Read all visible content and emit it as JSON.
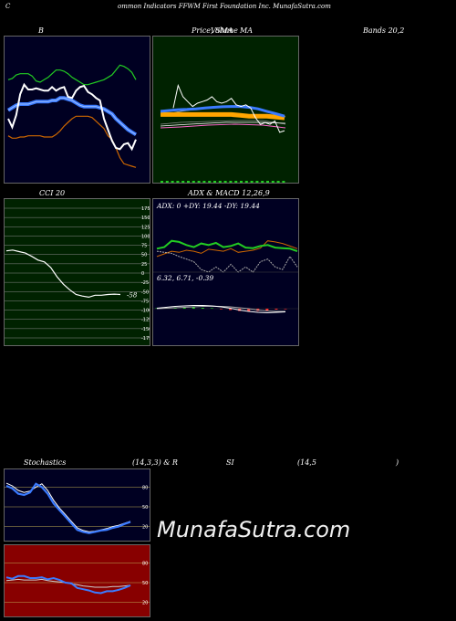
{
  "header": {
    "c": "C",
    "title": "ommon Indicators FFWM First Foundation Inc. MunafaSutra.com"
  },
  "labels": {
    "b": "B",
    "price_sma": "Price,  SMA",
    "volume": "Volume",
    "ma": "MA",
    "bands": "Bands 20,2",
    "cci": "CCI 20",
    "adx_macd": "ADX  & MACD 12,26,9",
    "stochastics": "Stochastics",
    "stoch_params": "(14,3,3) & R",
    "si": "SI",
    "rsi_params": "(14,5",
    "close_paren": ")"
  },
  "watermark": "MunafaSutra.com",
  "colors": {
    "panel_dark": "#000022",
    "panel_green": "#002200",
    "panel_red": "#880000",
    "blue": "#3b7bff",
    "white": "#ffffff",
    "green": "#22cc22",
    "orange": "#cc6600"
  },
  "chart_data": [
    {
      "id": "bollinger",
      "type": "line",
      "title": "Bands 20,2",
      "series": [
        {
          "role": "upper",
          "color": "#22cc22",
          "values": [
            62,
            63,
            66,
            67,
            67,
            67,
            65,
            61,
            60,
            62,
            64,
            67,
            70,
            70,
            69,
            67,
            64,
            62,
            60,
            58,
            58,
            59,
            60,
            61,
            62,
            64,
            66,
            70,
            74,
            73,
            71,
            68,
            62
          ]
        },
        {
          "role": "middle",
          "color": "#3b7bff",
          "values": [
            37,
            39,
            41,
            42,
            42,
            42,
            43,
            44,
            44,
            44,
            44,
            45,
            45,
            47,
            47,
            46,
            45,
            43,
            41,
            40,
            40,
            40,
            40,
            39,
            38,
            36,
            34,
            30,
            27,
            24,
            21,
            19,
            17
          ]
        },
        {
          "role": "lower",
          "color": "#cc6600",
          "values": [
            16,
            14,
            14,
            15,
            15,
            16,
            16,
            16,
            16,
            15,
            15,
            15,
            17,
            20,
            24,
            27,
            30,
            32,
            32,
            32,
            32,
            31,
            28,
            25,
            22,
            16,
            13,
            6,
            -2,
            -7,
            -8,
            -9,
            -10
          ]
        },
        {
          "role": "price",
          "color": "#ffffff",
          "values": [
            30,
            23,
            33,
            50,
            58,
            54,
            54,
            55,
            54,
            53,
            53,
            56,
            53,
            55,
            56,
            48,
            47,
            53,
            56,
            57,
            52,
            50,
            47,
            45,
            30,
            21,
            12,
            6,
            5,
            9,
            10,
            5,
            13
          ]
        }
      ]
    },
    {
      "id": "price_sma",
      "type": "line",
      "title": "Price,  SMA",
      "series": [
        {
          "role": "price",
          "color": "#ffffff",
          "values": [
            18.2,
            19.6,
            18.9,
            18.6,
            18.3,
            18.5,
            18.6,
            18.7,
            18.9,
            18.6,
            18.5,
            18.6,
            18.8,
            18.4,
            18.3,
            18.4,
            18.2,
            17.6,
            17.2,
            17.3,
            17.2,
            17.4,
            16.7,
            16.8
          ]
        },
        {
          "role": "sma-short",
          "color": "#3b7bff",
          "values": [
            18.0,
            18.05,
            18.1,
            18.12,
            18.15,
            18.2,
            18.25,
            18.28,
            18.3,
            18.3,
            18.25,
            18.15,
            18.0,
            17.85,
            17.7
          ]
        },
        {
          "role": "sma-long",
          "color": "#ffa500",
          "values": [
            17.8,
            17.8,
            17.8,
            17.8,
            17.8,
            17.8,
            17.8,
            17.8,
            17.8,
            17.75,
            17.7,
            17.7,
            17.7,
            17.65,
            17.6
          ]
        }
      ]
    },
    {
      "id": "cci",
      "type": "line",
      "title": "CCI 20",
      "ylim": [
        -175,
        175
      ],
      "ticks": [
        175,
        150,
        125,
        100,
        75,
        50,
        25,
        0,
        -25,
        -50,
        -75,
        -100,
        -125,
        -150,
        -175
      ],
      "last_label": "-58",
      "values": [
        60,
        62,
        58,
        54,
        45,
        35,
        30,
        15,
        -10,
        -30,
        -45,
        -58,
        -62,
        -65,
        -60,
        -60,
        -58,
        -57,
        -58
      ]
    },
    {
      "id": "adx",
      "type": "line",
      "title": "ADX: 0  +DY: 19.44  -DY: 19.44",
      "series": [
        {
          "name": "+DY",
          "color": "#22cc22",
          "values": [
            45,
            48,
            60,
            58,
            52,
            48,
            55,
            52,
            56,
            48,
            50,
            55,
            47,
            46,
            50,
            52,
            47,
            46,
            45,
            40
          ]
        },
        {
          "name": "-DY",
          "color": "#cc6600",
          "values": [
            30,
            35,
            40,
            38,
            42,
            40,
            36,
            44,
            42,
            40,
            45,
            38,
            40,
            42,
            46,
            60,
            58,
            55,
            50,
            45
          ]
        },
        {
          "name": "ADX",
          "color": "#aaaaaa",
          "values": [
            40,
            38,
            36,
            30,
            25,
            20,
            5,
            0,
            10,
            0,
            15,
            0,
            10,
            0,
            20,
            25,
            10,
            5,
            30,
            10
          ]
        }
      ]
    },
    {
      "id": "macd",
      "type": "line",
      "title": "6.32,  6.71,  -0.39",
      "series": [
        {
          "name": "macd",
          "color": "#ffffff",
          "values": [
            0.1,
            0.3,
            0.5,
            0.6,
            0.7,
            0.7,
            0.6,
            0.4,
            0.1,
            -0.3,
            -0.6,
            -0.8,
            -0.9,
            -0.8,
            -0.7
          ]
        },
        {
          "name": "signal",
          "color": "#aaaaaa",
          "values": [
            0.0,
            0.1,
            0.2,
            0.3,
            0.4,
            0.5,
            0.55,
            0.5,
            0.4,
            0.2,
            0.0,
            -0.3,
            -0.5,
            -0.6,
            -0.6
          ]
        }
      ]
    },
    {
      "id": "stochastics",
      "type": "line",
      "title": "Stochastics (14,3,3)",
      "ylim": [
        0,
        100
      ],
      "ticks": [
        80,
        50,
        20
      ],
      "series": [
        {
          "name": "%K",
          "color": "#3b7bff",
          "values": [
            82,
            78,
            70,
            68,
            72,
            85,
            80,
            70,
            55,
            45,
            35,
            25,
            15,
            12,
            10,
            12,
            14,
            15,
            18,
            20,
            24,
            27
          ]
        },
        {
          "name": "%D",
          "color": "#ffffff",
          "values": [
            86,
            82,
            75,
            72,
            74,
            80,
            85,
            75,
            60,
            48,
            38,
            28,
            18,
            14,
            12,
            13,
            15,
            17,
            20,
            22,
            25,
            28
          ]
        }
      ]
    },
    {
      "id": "rsi",
      "type": "line",
      "title": "RSI (14,5)",
      "ylim": [
        0,
        100
      ],
      "ticks": [
        80,
        50,
        20
      ],
      "series": [
        {
          "name": "RSI",
          "color": "#3b7bff",
          "values": [
            58,
            56,
            60,
            60,
            57,
            57,
            58,
            55,
            57,
            54,
            50,
            49,
            42,
            40,
            38,
            35,
            34,
            37,
            37,
            39,
            42,
            46
          ]
        },
        {
          "name": "smooth",
          "color": "#cccccc",
          "values": [
            53,
            54,
            55,
            54,
            54,
            54,
            55,
            53,
            52,
            51,
            50,
            48,
            47,
            45,
            44,
            43,
            43,
            43,
            44,
            44,
            45,
            46
          ]
        }
      ]
    }
  ]
}
